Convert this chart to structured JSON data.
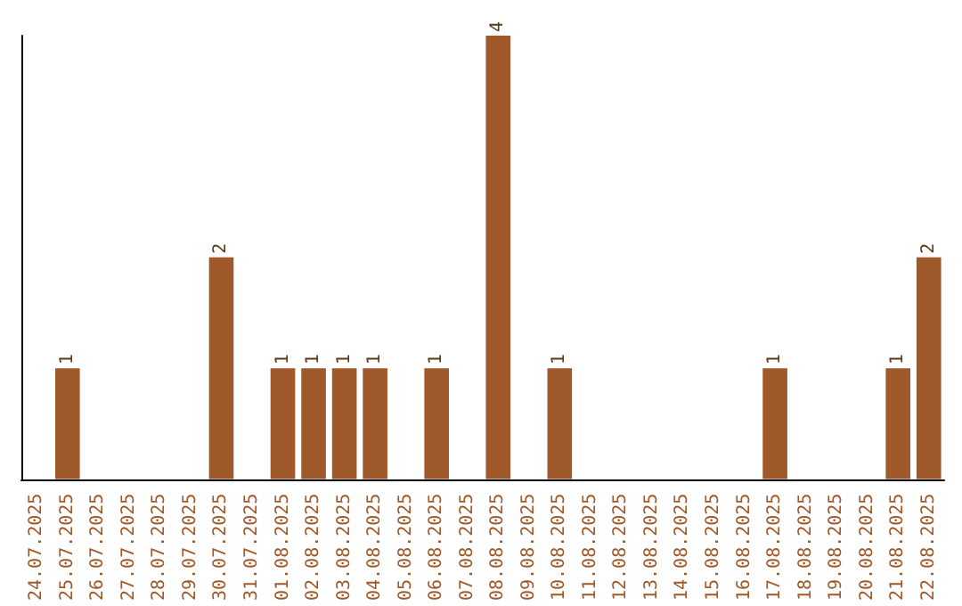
{
  "chart_data": {
    "type": "bar",
    "categories": [
      "24.07.2025",
      "25.07.2025",
      "26.07.2025",
      "27.07.2025",
      "28.07.2025",
      "29.07.2025",
      "30.07.2025",
      "31.07.2025",
      "01.08.2025",
      "02.08.2025",
      "03.08.2025",
      "04.08.2025",
      "05.08.2025",
      "06.08.2025",
      "07.08.2025",
      "08.08.2025",
      "09.08.2025",
      "10.08.2025",
      "11.08.2025",
      "12.08.2025",
      "13.08.2025",
      "14.08.2025",
      "15.08.2025",
      "16.08.2025",
      "17.08.2025",
      "18.08.2025",
      "19.08.2025",
      "20.08.2025",
      "21.08.2025",
      "22.08.2025"
    ],
    "values": [
      0,
      1,
      0,
      0,
      0,
      0,
      2,
      0,
      1,
      1,
      1,
      1,
      0,
      1,
      0,
      4,
      0,
      1,
      0,
      0,
      0,
      0,
      0,
      0,
      1,
      0,
      0,
      0,
      1,
      2
    ],
    "value_labels": [
      null,
      "1",
      null,
      null,
      null,
      null,
      "2",
      null,
      "1",
      "1",
      "1",
      "1",
      null,
      "1",
      null,
      "4",
      null,
      "1",
      null,
      null,
      null,
      null,
      null,
      null,
      "1",
      null,
      null,
      null,
      "1",
      "2"
    ],
    "color": "#a0592a",
    "tick_labels": "x"
  }
}
